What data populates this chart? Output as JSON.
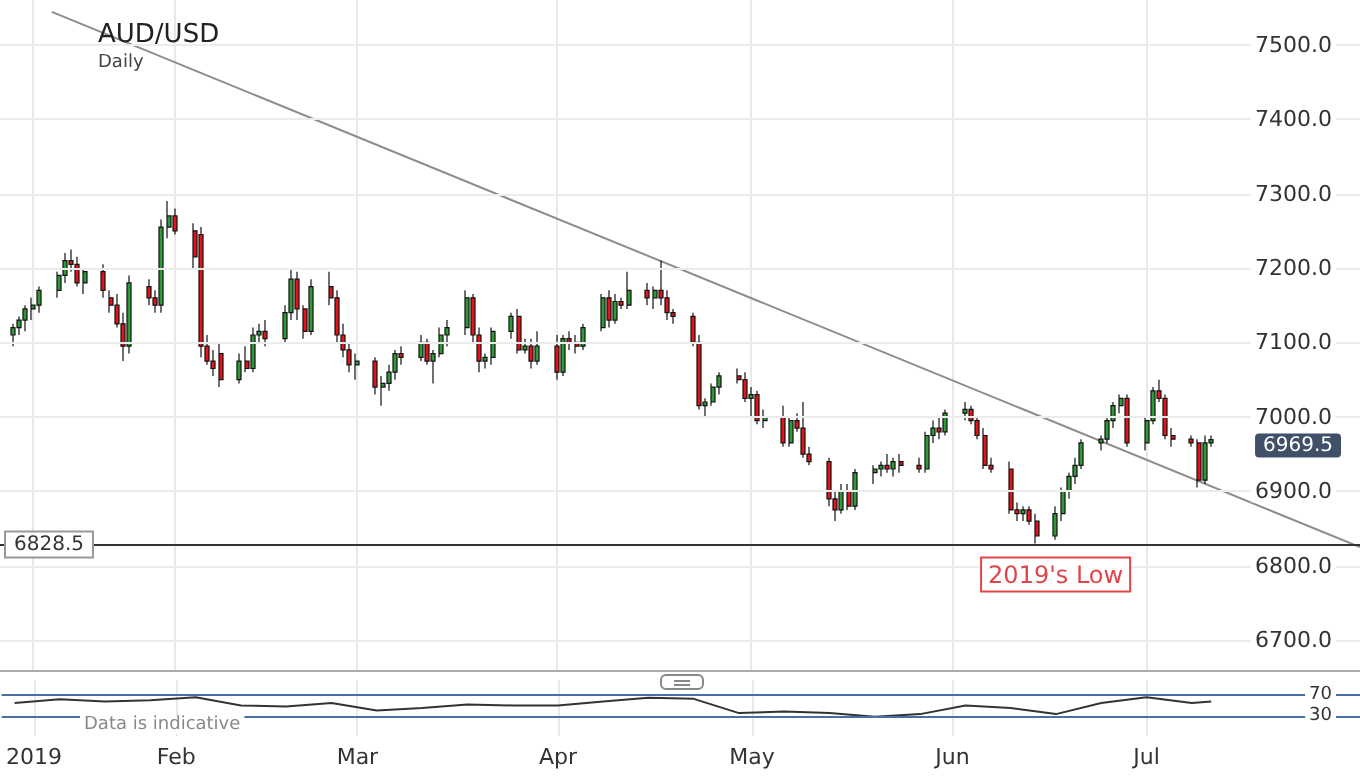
{
  "chart_data": [
    {
      "type": "candlestick",
      "title": "AUD/USD",
      "subtitle": "Daily",
      "x": [
        "2019-01-07",
        "2019-01-08",
        "2019-01-09",
        "2019-01-10",
        "2019-01-11",
        "2019-01-14",
        "2019-01-15",
        "2019-01-16",
        "2019-01-17",
        "2019-01-18",
        "2019-01-21",
        "2019-01-22",
        "2019-01-23",
        "2019-01-24",
        "2019-01-25",
        "2019-01-28",
        "2019-01-29",
        "2019-01-30",
        "2019-01-31",
        "2019-02-01",
        "2019-02-04",
        "2019-02-05",
        "2019-02-06",
        "2019-02-07",
        "2019-02-08",
        "2019-02-11",
        "2019-02-12",
        "2019-02-13",
        "2019-02-14",
        "2019-02-15",
        "2019-02-18",
        "2019-02-19",
        "2019-02-20",
        "2019-02-21",
        "2019-02-22",
        "2019-02-25",
        "2019-02-26",
        "2019-02-27",
        "2019-02-28",
        "2019-03-01",
        "2019-03-04",
        "2019-03-05",
        "2019-03-06",
        "2019-03-07",
        "2019-03-08",
        "2019-03-11",
        "2019-03-12",
        "2019-03-13",
        "2019-03-14",
        "2019-03-15",
        "2019-03-18",
        "2019-03-19",
        "2019-03-20",
        "2019-03-21",
        "2019-03-22",
        "2019-03-25",
        "2019-03-26",
        "2019-03-27",
        "2019-03-28",
        "2019-03-29",
        "2019-04-01",
        "2019-04-02",
        "2019-04-03",
        "2019-04-04",
        "2019-04-05",
        "2019-04-08",
        "2019-04-09",
        "2019-04-10",
        "2019-04-11",
        "2019-04-12",
        "2019-04-15",
        "2019-04-16",
        "2019-04-17",
        "2019-04-18",
        "2019-04-19",
        "2019-04-22",
        "2019-04-23",
        "2019-04-24",
        "2019-04-25",
        "2019-04-26",
        "2019-04-29",
        "2019-04-30",
        "2019-05-01",
        "2019-05-02",
        "2019-05-03",
        "2019-05-06",
        "2019-05-07",
        "2019-05-08",
        "2019-05-09",
        "2019-05-10",
        "2019-05-13",
        "2019-05-14",
        "2019-05-15",
        "2019-05-16",
        "2019-05-17",
        "2019-05-20",
        "2019-05-21",
        "2019-05-22",
        "2019-05-23",
        "2019-05-24",
        "2019-05-27",
        "2019-05-28",
        "2019-05-29",
        "2019-05-30",
        "2019-05-31",
        "2019-06-03",
        "2019-06-04",
        "2019-06-05",
        "2019-06-06",
        "2019-06-07",
        "2019-06-10",
        "2019-06-11",
        "2019-06-12",
        "2019-06-13",
        "2019-06-14",
        "2019-06-17",
        "2019-06-18",
        "2019-06-19",
        "2019-06-20",
        "2019-06-21",
        "2019-06-24",
        "2019-06-25",
        "2019-06-26",
        "2019-06-27",
        "2019-06-28",
        "2019-07-01",
        "2019-07-02",
        "2019-07-03",
        "2019-07-04",
        "2019-07-05",
        "2019-07-08",
        "2019-07-09",
        "2019-07-10",
        "2019-07-11"
      ],
      "ohlc": [
        [
          7110,
          7125,
          7095,
          7120
        ],
        [
          7120,
          7135,
          7110,
          7130
        ],
        [
          7130,
          7150,
          7115,
          7145
        ],
        [
          7145,
          7160,
          7130,
          7150
        ],
        [
          7150,
          7175,
          7140,
          7170
        ],
        [
          7170,
          7195,
          7160,
          7190
        ],
        [
          7190,
          7220,
          7180,
          7210
        ],
        [
          7210,
          7225,
          7195,
          7205
        ],
        [
          7205,
          7215,
          7175,
          7180
        ],
        [
          7180,
          7200,
          7165,
          7195
        ],
        [
          7195,
          7205,
          7160,
          7170
        ],
        [
          7160,
          7170,
          7140,
          7150
        ],
        [
          7150,
          7165,
          7120,
          7125
        ],
        [
          7125,
          7140,
          7075,
          7095
        ],
        [
          7095,
          7190,
          7085,
          7180
        ],
        [
          7175,
          7185,
          7150,
          7160
        ],
        [
          7160,
          7170,
          7140,
          7150
        ],
        [
          7150,
          7265,
          7140,
          7255
        ],
        [
          7255,
          7290,
          7240,
          7270
        ],
        [
          7270,
          7280,
          7245,
          7250
        ],
        [
          7250,
          7260,
          7200,
          7215
        ],
        [
          7245,
          7255,
          7080,
          7095
        ],
        [
          7095,
          7110,
          7070,
          7075
        ],
        [
          7075,
          7090,
          7055,
          7065
        ],
        [
          7085,
          7100,
          7040,
          7050
        ],
        [
          7050,
          7085,
          7045,
          7075
        ],
        [
          7075,
          7095,
          7060,
          7065
        ],
        [
          7065,
          7120,
          7060,
          7110
        ],
        [
          7110,
          7125,
          7100,
          7115
        ],
        [
          7115,
          7130,
          7095,
          7105
        ],
        [
          7105,
          7150,
          7100,
          7140
        ],
        [
          7140,
          7200,
          7130,
          7185
        ],
        [
          7185,
          7195,
          7130,
          7145
        ],
        [
          7145,
          7150,
          7105,
          7115
        ],
        [
          7115,
          7185,
          7110,
          7175
        ],
        [
          7175,
          7195,
          7150,
          7160
        ],
        [
          7160,
          7170,
          7100,
          7110
        ],
        [
          7110,
          7125,
          7080,
          7090
        ],
        [
          7090,
          7100,
          7060,
          7070
        ],
        [
          7070,
          7085,
          7050,
          7075
        ],
        [
          7075,
          7080,
          7030,
          7040
        ],
        [
          7040,
          7055,
          7015,
          7045
        ],
        [
          7045,
          7070,
          7035,
          7060
        ],
        [
          7060,
          7090,
          7050,
          7085
        ],
        [
          7085,
          7095,
          7070,
          7080
        ],
        [
          7080,
          7110,
          7075,
          7100
        ],
        [
          7100,
          7105,
          7070,
          7075
        ],
        [
          7075,
          7090,
          7045,
          7085
        ],
        [
          7085,
          7120,
          7080,
          7110
        ],
        [
          7110,
          7130,
          7095,
          7120
        ],
        [
          7120,
          7170,
          7110,
          7160
        ],
        [
          7160,
          7165,
          7100,
          7110
        ],
        [
          7110,
          7120,
          7060,
          7075
        ],
        [
          7075,
          7085,
          7065,
          7080
        ],
        [
          7080,
          7120,
          7070,
          7115
        ],
        [
          7115,
          7140,
          7105,
          7135
        ],
        [
          7135,
          7145,
          7085,
          7090
        ],
        [
          7090,
          7105,
          7085,
          7095
        ],
        [
          7095,
          7105,
          7065,
          7075
        ],
        [
          7075,
          7115,
          7070,
          7095
        ],
        [
          7095,
          7110,
          7050,
          7060
        ],
        [
          7060,
          7110,
          7055,
          7105
        ],
        [
          7105,
          7115,
          7090,
          7100
        ],
        [
          7100,
          7110,
          7085,
          7095
        ],
        [
          7095,
          7125,
          7090,
          7120
        ],
        [
          7120,
          7165,
          7115,
          7160
        ],
        [
          7160,
          7170,
          7120,
          7130
        ],
        [
          7130,
          7165,
          7125,
          7155
        ],
        [
          7155,
          7160,
          7145,
          7150
        ],
        [
          7150,
          7195,
          7145,
          7170
        ],
        [
          7170,
          7180,
          7150,
          7160
        ],
        [
          7160,
          7175,
          7145,
          7170
        ],
        [
          7170,
          7210,
          7150,
          7160
        ],
        [
          7160,
          7170,
          7130,
          7140
        ],
        [
          7140,
          7145,
          7125,
          7135
        ],
        [
          7135,
          7140,
          7095,
          7100
        ],
        [
          7100,
          7110,
          7010,
          7015
        ],
        [
          7015,
          7025,
          7000,
          7020
        ],
        [
          7020,
          7045,
          7015,
          7040
        ],
        [
          7040,
          7060,
          7030,
          7055
        ],
        [
          7055,
          7065,
          7045,
          7050
        ],
        [
          7050,
          7060,
          7020,
          7025
        ],
        [
          7025,
          7040,
          7000,
          7030
        ],
        [
          7030,
          7035,
          6990,
          6995
        ],
        [
          6995,
          7010,
          6985,
          7000
        ],
        [
          7000,
          7015,
          6960,
          6965
        ],
        [
          6965,
          7000,
          6960,
          6995
        ],
        [
          6995,
          7005,
          6980,
          6985
        ],
        [
          6985,
          7020,
          6945,
          6950
        ],
        [
          6950,
          6960,
          6935,
          6940
        ],
        [
          6940,
          6945,
          6880,
          6890
        ],
        [
          6890,
          6900,
          6860,
          6875
        ],
        [
          6875,
          6910,
          6870,
          6900
        ],
        [
          6900,
          6910,
          6875,
          6880
        ],
        [
          6880,
          6930,
          6875,
          6925
        ],
        [
          6925,
          6935,
          6910,
          6930
        ],
        [
          6930,
          6940,
          6920,
          6935
        ],
        [
          6935,
          6950,
          6925,
          6930
        ],
        [
          6930,
          6945,
          6920,
          6940
        ],
        [
          6940,
          6950,
          6925,
          6935
        ],
        [
          6935,
          6945,
          6925,
          6930
        ],
        [
          6930,
          6980,
          6925,
          6975
        ],
        [
          6975,
          6995,
          6965,
          6985
        ],
        [
          6985,
          7000,
          6970,
          6980
        ],
        [
          6980,
          7010,
          6975,
          7005
        ],
        [
          7005,
          7020,
          6995,
          7010
        ],
        [
          7010,
          7015,
          6990,
          6995
        ],
        [
          6995,
          7000,
          6970,
          6975
        ],
        [
          6975,
          6985,
          6930,
          6935
        ],
        [
          6935,
          6945,
          6925,
          6930
        ],
        [
          6930,
          6940,
          6870,
          6875
        ],
        [
          6875,
          6885,
          6860,
          6870
        ],
        [
          6870,
          6880,
          6860,
          6875
        ],
        [
          6875,
          6880,
          6855,
          6860
        ],
        [
          6860,
          6870,
          6830,
          6840
        ],
        [
          6840,
          6880,
          6835,
          6870
        ],
        [
          6870,
          6905,
          6860,
          6900
        ],
        [
          6900,
          6925,
          6890,
          6920
        ],
        [
          6920,
          6945,
          6910,
          6935
        ],
        [
          6935,
          6970,
          6930,
          6965
        ],
        [
          6965,
          6975,
          6955,
          6970
        ],
        [
          6970,
          7000,
          6965,
          6995
        ],
        [
          6995,
          7020,
          6985,
          7015
        ],
        [
          7015,
          7030,
          7005,
          7025
        ],
        [
          7025,
          7030,
          6960,
          6965
        ],
        [
          6965,
          7000,
          6955,
          6995
        ],
        [
          6995,
          7040,
          6990,
          7035
        ],
        [
          7035,
          7050,
          7020,
          7025
        ],
        [
          7025,
          7030,
          6970,
          6975
        ],
        [
          6975,
          6985,
          6960,
          6970
        ],
        [
          6970,
          6975,
          6960,
          6965
        ],
        [
          6965,
          6970,
          6905,
          6915
        ],
        [
          6915,
          6975,
          6910,
          6965
        ],
        [
          6965,
          6975,
          6960,
          6969.5
        ]
      ],
      "series": [
        {
          "type": "line",
          "x": [
            "2019-01-13",
            "2019-08-03"
          ],
          "values": [
            7544,
            6825
          ],
          "color": "#8c8c8c"
        }
      ],
      "xlim": [
        "2019-01-05",
        "2019-08-03"
      ],
      "xticks": [
        {
          "value": "2019-01-10",
          "label": null
        },
        {
          "value": "2019-02-01",
          "label": null
        },
        {
          "value": "2019-03-01",
          "label": null
        },
        {
          "value": "2019-04-01",
          "label": null
        },
        {
          "value": "2019-05-01",
          "label": null
        },
        {
          "value": "2019-06-01",
          "label": null
        },
        {
          "value": "2019-07-01",
          "label": null
        }
      ],
      "ylim": [
        6660,
        7560
      ],
      "yticks": [
        {
          "value": 6700,
          "label": "6700.0"
        },
        {
          "value": 6800,
          "label": "6800.0"
        },
        {
          "value": 6900,
          "label": "6900.0"
        },
        {
          "value": 7000,
          "label": "7000.0"
        },
        {
          "value": 7100,
          "label": "7100.0"
        },
        {
          "value": 7200,
          "label": "7200.0"
        },
        {
          "value": 7300,
          "label": "7300.0"
        },
        {
          "value": 7400,
          "label": "7400.0"
        },
        {
          "value": 7500,
          "label": "7500.0"
        }
      ],
      "ref_lines": [
        {
          "axis": "y",
          "value": 6828.5,
          "label": "6828.5",
          "color": "#333333"
        }
      ],
      "annotations": [
        {
          "text": "6969.5",
          "x": "2019-07-11",
          "y": 6969.5
        },
        {
          "text": "2019's Low",
          "x": "2019-06-17",
          "y": 6828.5
        }
      ],
      "grid": true,
      "tick_labels": "y"
    },
    {
      "type": "line",
      "x": [
        "2019-01-07",
        "2019-01-14",
        "2019-01-21",
        "2019-01-28",
        "2019-02-04",
        "2019-02-11",
        "2019-02-18",
        "2019-02-25",
        "2019-03-04",
        "2019-03-11",
        "2019-03-18",
        "2019-03-25",
        "2019-04-01",
        "2019-04-08",
        "2019-04-15",
        "2019-04-22",
        "2019-04-29",
        "2019-05-06",
        "2019-05-13",
        "2019-05-20",
        "2019-05-27",
        "2019-06-03",
        "2019-06-10",
        "2019-06-17",
        "2019-06-24",
        "2019-07-01",
        "2019-07-08",
        "2019-07-11"
      ],
      "values": [
        55,
        62,
        58,
        60,
        66,
        50,
        48,
        55,
        40,
        45,
        52,
        50,
        50,
        58,
        65,
        63,
        35,
        38,
        35,
        28,
        33,
        50,
        45,
        33,
        55,
        66,
        55,
        58
      ],
      "color": "#333333",
      "xlim": [
        "2019-01-05",
        "2019-08-03"
      ],
      "xticks": [
        {
          "value": "2019-01-10",
          "label": "2019"
        },
        {
          "value": "2019-02-01",
          "label": "Feb"
        },
        {
          "value": "2019-03-01",
          "label": "Mar"
        },
        {
          "value": "2019-04-01",
          "label": "Apr"
        },
        {
          "value": "2019-05-01",
          "label": "May"
        },
        {
          "value": "2019-06-01",
          "label": "Jun"
        },
        {
          "value": "2019-07-01",
          "label": "Jul"
        }
      ],
      "ylim": [
        -10,
        100
      ],
      "yticks": [
        30,
        70
      ],
      "ref_lines": [
        {
          "axis": "y",
          "value": 70,
          "color": "#4a6fa5"
        },
        {
          "axis": "y",
          "value": 30,
          "color": "#4a6fa5"
        }
      ],
      "annotations": [
        "Data is indicative"
      ],
      "grid": "x"
    }
  ]
}
